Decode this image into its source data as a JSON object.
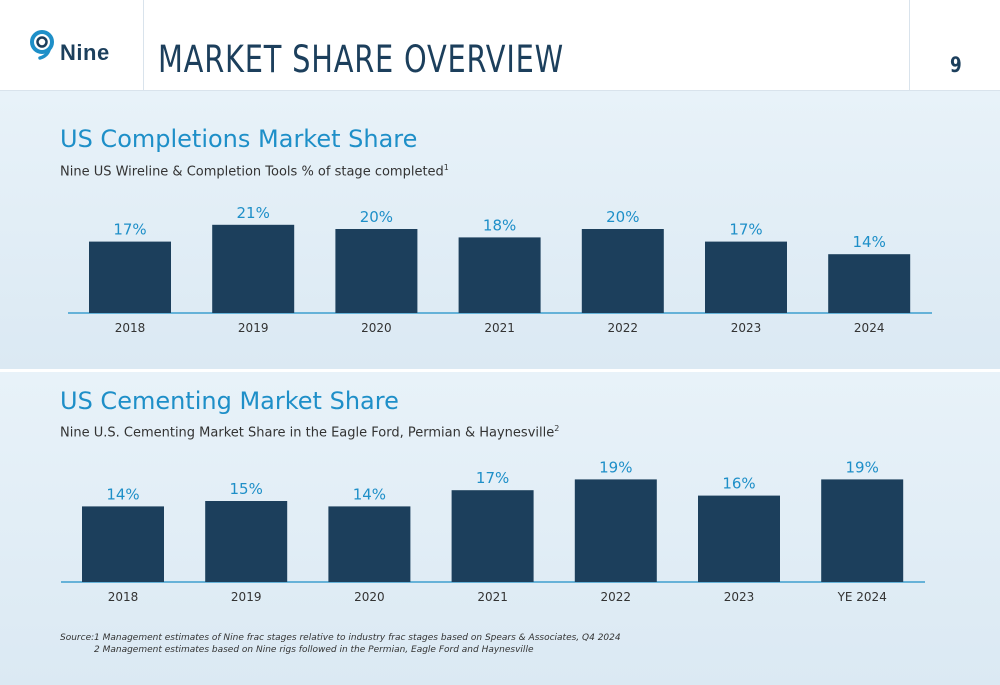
{
  "header": {
    "logo_text": "Nine",
    "title": "MARKET SHARE OVERVIEW",
    "page_number": "9"
  },
  "colors": {
    "bar": "#1c3f5c",
    "label": "#1e8fc8",
    "axis": "#1e8fc8",
    "title": "#1c3f5c"
  },
  "sections": {
    "completions": {
      "title": "US Completions Market Share",
      "subtitle": "Nine US Wireline & Completion Tools % of stage completed",
      "footnote_ref": "1"
    },
    "cementing": {
      "title": "US Cementing Market Share",
      "subtitle": "Nine U.S. Cementing Market Share in the Eagle Ford, Permian & Haynesville",
      "footnote_ref": "2"
    }
  },
  "chart_data": [
    {
      "type": "bar",
      "title": "US Completions Market Share",
      "categories": [
        "2018",
        "2019",
        "2020",
        "2021",
        "2022",
        "2023",
        "2024"
      ],
      "values": [
        17,
        21,
        20,
        18,
        20,
        17,
        14
      ],
      "value_labels": [
        "17%",
        "21%",
        "20%",
        "18%",
        "20%",
        "17%",
        "14%"
      ],
      "unit": "%"
    },
    {
      "type": "bar",
      "title": "US Cementing Market Share",
      "categories": [
        "2018",
        "2019",
        "2020",
        "2021",
        "2022",
        "2023",
        "YE 2024"
      ],
      "values": [
        14,
        15,
        14,
        17,
        19,
        16,
        19
      ],
      "value_labels": [
        "14%",
        "15%",
        "14%",
        "17%",
        "19%",
        "16%",
        "19%"
      ],
      "unit": "%"
    }
  ],
  "source": {
    "label": "Source:",
    "notes": [
      "1 Management estimates of Nine frac stages relative to industry frac stages based on Spears & Associates, Q4 2024",
      "2 Management estimates based on Nine rigs followed in the Permian, Eagle Ford and Haynesville"
    ]
  }
}
